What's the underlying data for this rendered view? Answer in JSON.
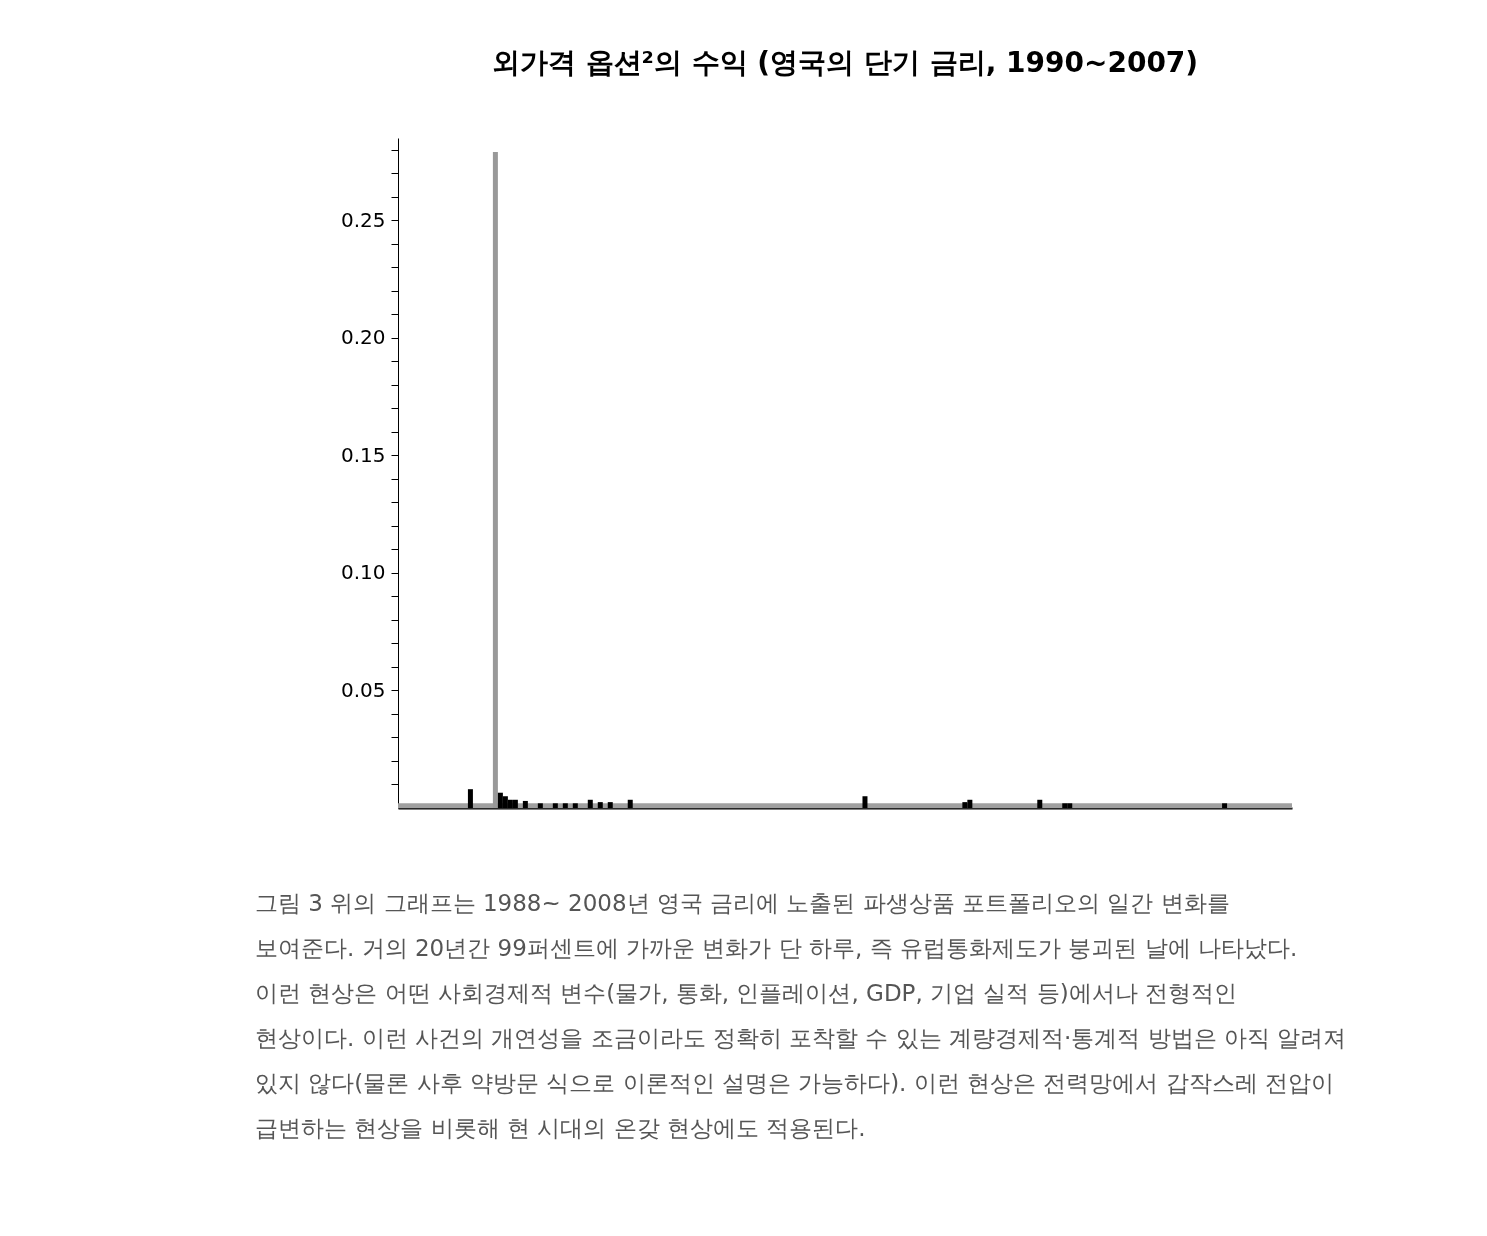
{
  "chart_data": {
    "type": "bar",
    "title": "외가격 옵션²의 수익 (영국의 단기 금리, 1990~2007)",
    "categories": [
      null,
      null,
      null,
      null,
      null,
      null,
      null,
      null,
      null,
      null,
      null,
      null,
      null,
      null,
      null,
      null,
      null,
      null,
      null,
      null,
      null,
      null,
      null,
      null,
      null,
      null,
      null,
      null,
      null,
      null,
      null,
      null,
      null,
      null,
      null,
      null,
      null,
      null,
      null,
      null,
      null,
      null,
      null,
      null,
      null,
      null,
      null,
      null,
      null,
      null,
      null,
      null,
      null,
      null,
      null,
      null,
      null,
      null,
      null,
      null,
      null,
      null,
      null,
      null,
      null,
      null,
      null,
      null,
      null,
      null,
      null,
      null,
      null,
      null,
      null,
      null,
      null,
      null,
      null,
      null,
      null,
      null,
      null,
      null,
      null,
      null,
      null,
      null,
      null,
      null,
      null,
      null,
      null,
      null,
      null,
      null,
      null,
      null,
      null,
      null,
      null,
      null,
      null,
      null,
      null,
      null,
      null,
      null,
      null,
      null,
      null,
      null,
      null,
      null,
      null,
      null,
      null,
      null,
      null,
      null,
      null,
      null,
      null,
      null,
      null,
      null,
      null,
      null,
      null,
      null,
      null,
      null,
      null,
      null,
      null,
      null,
      null,
      null,
      null,
      null,
      null,
      null,
      null,
      null,
      null,
      null,
      null,
      null,
      null,
      null,
      null,
      null,
      null,
      null,
      null,
      null,
      null,
      null,
      null,
      null,
      null,
      null,
      null,
      null,
      null,
      null,
      null,
      null,
      null,
      null,
      null,
      null,
      null,
      null,
      null,
      null,
      null,
      null,
      null
    ],
    "values": [
      null,
      null,
      null,
      null,
      null,
      null,
      null,
      null,
      null,
      null,
      null,
      null,
      null,
      null,
      0.008,
      null,
      null,
      null,
      null,
      0.279,
      0.0065,
      0.005,
      0.0035,
      0.0035,
      null,
      0.003,
      null,
      null,
      0.002,
      null,
      null,
      0.002,
      null,
      0.002,
      null,
      0.002,
      null,
      null,
      0.0035,
      null,
      0.0025,
      null,
      0.0025,
      null,
      null,
      null,
      0.0035,
      null,
      null,
      null,
      null,
      null,
      null,
      null,
      null,
      null,
      null,
      null,
      null,
      null,
      null,
      null,
      null,
      null,
      null,
      null,
      null,
      null,
      null,
      null,
      null,
      null,
      null,
      null,
      null,
      null,
      null,
      null,
      null,
      null,
      null,
      null,
      null,
      null,
      null,
      null,
      null,
      null,
      null,
      null,
      null,
      null,
      null,
      0.005,
      null,
      null,
      null,
      null,
      null,
      null,
      null,
      null,
      null,
      null,
      null,
      null,
      null,
      null,
      null,
      null,
      null,
      null,
      null,
      0.0025,
      0.0035,
      null,
      null,
      null,
      null,
      null,
      null,
      null,
      null,
      null,
      null,
      null,
      null,
      null,
      0.0035,
      null,
      null,
      null,
      null,
      0.002,
      0.002,
      null,
      null,
      null,
      null,
      null,
      null,
      null,
      null,
      null,
      null,
      null,
      null,
      null,
      null,
      null,
      null,
      null,
      null,
      null,
      null,
      null,
      null,
      null,
      null,
      null,
      null,
      null,
      null,
      null,
      null,
      0.002,
      null,
      null,
      null,
      null,
      null,
      null,
      null,
      null,
      null,
      null,
      null,
      null,
      null
    ],
    "colors": [
      null,
      null,
      null,
      null,
      null,
      null,
      null,
      null,
      null,
      null,
      null,
      null,
      null,
      null,
      "#000000",
      null,
      null,
      null,
      null,
      "#999999",
      "#000000",
      "#000000",
      "#000000",
      "#000000",
      null,
      "#000000",
      null,
      null,
      "#000000",
      null,
      null,
      "#000000",
      null,
      "#000000",
      null,
      "#000000",
      null,
      null,
      "#000000",
      null,
      "#000000",
      null,
      "#000000",
      null,
      null,
      null,
      "#000000",
      null,
      null,
      null,
      null,
      null,
      null,
      null,
      null,
      null,
      null,
      null,
      null,
      null,
      null,
      null,
      null,
      null,
      null,
      null,
      null,
      null,
      null,
      null,
      null,
      null,
      null,
      null,
      null,
      null,
      null,
      null,
      null,
      null,
      null,
      null,
      null,
      null,
      null,
      null,
      null,
      null,
      null,
      null,
      null,
      null,
      null,
      "#000000",
      null,
      null,
      null,
      null,
      null,
      null,
      null,
      null,
      null,
      null,
      null,
      null,
      null,
      null,
      null,
      null,
      null,
      null,
      null,
      "#000000",
      "#000000",
      null,
      null,
      null,
      null,
      null,
      null,
      null,
      null,
      null,
      null,
      null,
      null,
      null,
      "#000000",
      null,
      null,
      null,
      null,
      "#000000",
      "#000000",
      null,
      null,
      null,
      null,
      null,
      null,
      null,
      null,
      null,
      null,
      null,
      null,
      null,
      null,
      null,
      null,
      null,
      null,
      null,
      null,
      null,
      null,
      null,
      null,
      null,
      null,
      null,
      null,
      null,
      null,
      "#000000",
      null,
      null,
      null,
      null,
      null,
      null,
      null,
      null,
      null,
      null,
      null,
      null,
      null
    ],
    "ylim": [
      0,
      0.285
    ],
    "yticks": [
      {
        "value": 0.01,
        "label": null
      },
      {
        "value": 0.02,
        "label": null
      },
      {
        "value": 0.03,
        "label": null
      },
      {
        "value": 0.04,
        "label": null
      },
      0.05,
      {
        "value": 0.06,
        "label": null
      },
      {
        "value": 0.07,
        "label": null
      },
      {
        "value": 0.08,
        "label": null
      },
      {
        "value": 0.09,
        "label": null
      },
      {
        "value": 0.1,
        "label": "0.10"
      },
      {
        "value": 0.11,
        "label": null
      },
      {
        "value": 0.12,
        "label": null
      },
      {
        "value": 0.13,
        "label": null
      },
      {
        "value": 0.14,
        "label": null
      },
      0.15,
      {
        "value": 0.16,
        "label": null
      },
      {
        "value": 0.17,
        "label": null
      },
      {
        "value": 0.18,
        "label": null
      },
      {
        "value": 0.19,
        "label": null
      },
      {
        "value": 0.2,
        "label": "0.20"
      },
      {
        "value": 0.21,
        "label": null
      },
      {
        "value": 0.22,
        "label": null
      },
      {
        "value": 0.23,
        "label": null
      },
      {
        "value": 0.24,
        "label": null
      },
      0.25,
      {
        "value": 0.26,
        "label": null
      },
      {
        "value": 0.27,
        "label": null
      },
      {
        "value": 0.28,
        "label": null
      }
    ],
    "ref_lines": [
      {
        "axis": "y",
        "value": 0.001,
        "color": "#a0a0a0"
      }
    ],
    "annotations": [
      "그림 3   위의 그래프는  1988~ 2008년 영국 금리에 노출된 파생상품 포트폴리오의 일간 변화를 보여준다. 거의 20년간 99퍼센트에 가까운 변화가 단 하루, 즉 유럽통화제도가 붕괴된 날에 나타났다. 이런 현상은 어떤 사회경제적 변수(물가, 통화, 인플레이션, GDP, 기업 실적 등)에서나 전형적인 현상이다. 이런 사건의 개연성을 조금이라도 정확히 포착할 수 있는 계량경제적·통계적 방법은 아직 알려져 있지 않다(물론 사후 약방문 식으로 이론적인 설명은 가능하다). 이런 현상은 전력망에서 갑작스레 전압이 급변하는 현상을 비롯해 현 시대의 온갖 현상에도 적용된다."
    ]
  }
}
